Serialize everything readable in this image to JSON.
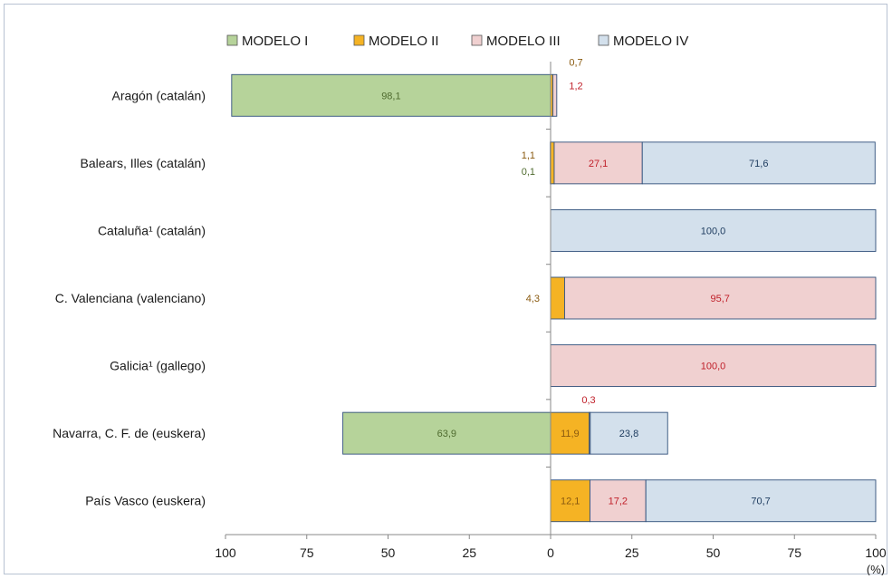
{
  "chart_data": {
    "type": "bar",
    "orientation": "horizontal-diverging",
    "categories": [
      "Aragón  (catalán)",
      "Balears, Illes (catalán)",
      "Cataluña¹ (catalán)",
      "C. Valenciana (valenciano)",
      "Galicia¹ (gallego)",
      "Navarra, C. F. de (euskera)",
      "País Vasco (euskera)"
    ],
    "series": [
      {
        "name": "MODELO I",
        "color": "#b6d39a",
        "label_color": "#4f6b2f",
        "direction": "left",
        "values": [
          98.1,
          0.1,
          0,
          0,
          0,
          63.9,
          0
        ],
        "labels": [
          "98,1",
          "0,1",
          "",
          "",
          "",
          "63,9",
          ""
        ]
      },
      {
        "name": "MODELO II",
        "color": "#f5b324",
        "label_color": "#8a5a10",
        "direction": "right",
        "values": [
          0.7,
          1.1,
          0,
          4.3,
          0,
          11.9,
          12.1
        ],
        "labels": [
          "0,7",
          "1,1",
          "",
          "4,3",
          "",
          "11,9",
          "12,1"
        ]
      },
      {
        "name": "MODELO III",
        "color": "#f0d0d0",
        "label_color": "#c0202a",
        "direction": "right",
        "values": [
          1.2,
          27.1,
          0,
          95.7,
          100.0,
          0.3,
          17.2
        ],
        "labels": [
          "1,2",
          "27,1",
          "",
          "95,7",
          "100,0",
          "0,3",
          "17,2"
        ]
      },
      {
        "name": "MODELO IV",
        "color": "#d3e0ec",
        "label_color": "#1f3d60",
        "direction": "right",
        "values": [
          0,
          71.6,
          100.0,
          0,
          0,
          23.8,
          70.7
        ],
        "labels": [
          "",
          "71,6",
          "100,0",
          "",
          "",
          "23,8",
          "70,7"
        ]
      }
    ],
    "x_ticks": [
      "100",
      "75",
      "50",
      "25",
      "0",
      "25",
      "50",
      "75",
      "100"
    ],
    "xlim": [
      -100,
      100
    ],
    "x_unit": "(%)",
    "legend_position": "top-center",
    "grid": false
  }
}
